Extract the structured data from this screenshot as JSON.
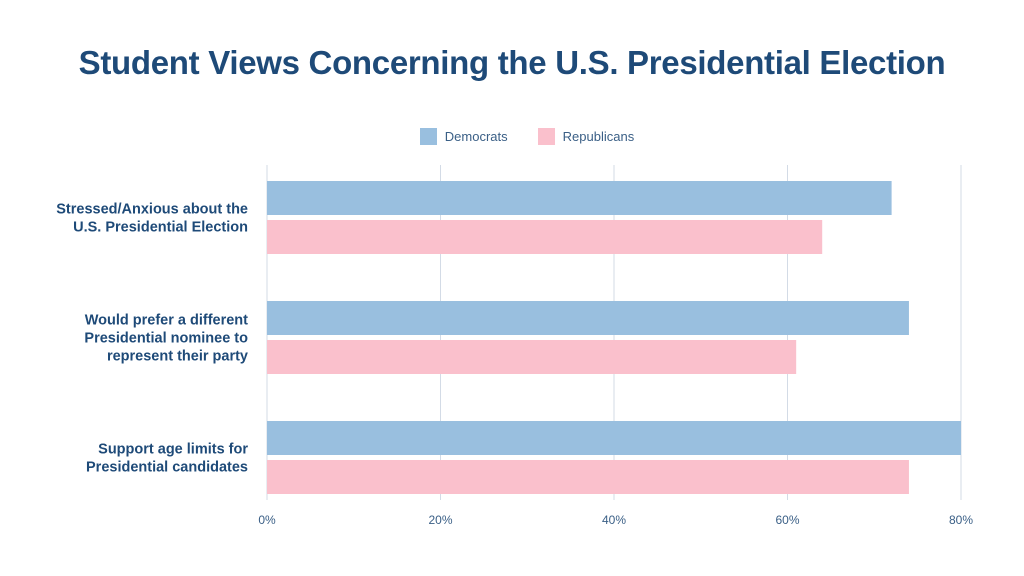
{
  "chart_data": {
    "type": "bar",
    "orientation": "horizontal",
    "title": "Student Views Concerning the U.S. Presidential Election",
    "xlabel": "",
    "ylabel": "",
    "categories": [
      [
        "Stressed/Anxious about the",
        "U.S. Presidential Election"
      ],
      [
        "Would prefer a different",
        "Presidential nominee to",
        "represent their party"
      ],
      [
        "Support age limits for",
        "Presidential candidates"
      ]
    ],
    "series": [
      {
        "name": "Democrats",
        "color": "#99bfdf",
        "values": [
          72,
          74,
          80
        ]
      },
      {
        "name": "Republicans",
        "color": "#fac0cc",
        "values": [
          64,
          61,
          74
        ]
      }
    ],
    "xlim": [
      0,
      80
    ],
    "xticks": [
      0,
      20,
      40,
      60,
      80
    ],
    "xtick_labels": [
      "0%",
      "20%",
      "40%",
      "60%",
      "80%"
    ],
    "grid": true,
    "legend": "top-center",
    "colors": {
      "title": "#1e4a78",
      "labels": "#1e4a78",
      "ticks": "#3a5f86",
      "grid": "#d3dbe6"
    }
  }
}
